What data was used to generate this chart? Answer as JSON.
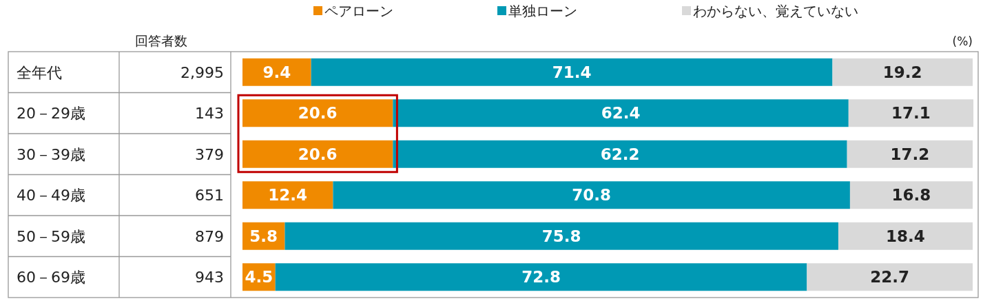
{
  "chart_data": {
    "type": "bar",
    "orientation": "horizontal",
    "stacked": true,
    "legend": "top",
    "data_labels": true,
    "xlim": [
      0,
      100
    ],
    "categories": [
      "全年代",
      "20－29歳",
      "30－39歳",
      "40－49歳",
      "50－59歳",
      "60－69歳"
    ],
    "series": [
      {
        "name": "ペアローン",
        "color": "#f08a00",
        "values": [
          9.4,
          20.6,
          20.6,
          12.4,
          5.8,
          4.5
        ]
      },
      {
        "name": "単独ローン",
        "color": "#0099b4",
        "values": [
          71.4,
          62.4,
          62.2,
          70.8,
          75.8,
          72.8
        ]
      },
      {
        "name": "わからない、覚えていない",
        "color": "#d9d9d9",
        "values": [
          19.2,
          17.1,
          17.2,
          16.8,
          18.4,
          22.7
        ]
      }
    ],
    "annotations": [
      "回答者数",
      "(%)",
      "2,995",
      "143",
      "379",
      "651",
      "879",
      "943"
    ]
  }
}
